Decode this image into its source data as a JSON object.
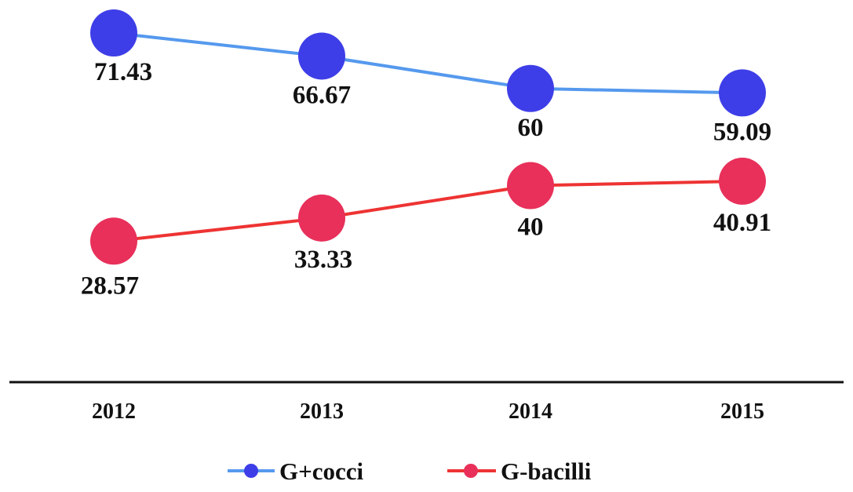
{
  "chart_data": {
    "type": "line",
    "categories": [
      "2012",
      "2013",
      "2014",
      "2015"
    ],
    "series": [
      {
        "name": "G+cocci",
        "values": [
          71.43,
          66.67,
          60,
          59.09
        ],
        "labels": [
          "71.43",
          "66.67",
          "60",
          "59.09"
        ],
        "color": "#3e3ee8",
        "line_color": "#5599ee"
      },
      {
        "name": "G-bacilli",
        "values": [
          28.57,
          33.33,
          40,
          40.91
        ],
        "labels": [
          "28.57",
          "33.33",
          "40",
          "40.91"
        ],
        "color": "#e8305a",
        "line_color": "#ee3333"
      }
    ],
    "legend": "bottom-center",
    "grid": false,
    "title": "",
    "xlabel": "",
    "ylabel": ""
  }
}
